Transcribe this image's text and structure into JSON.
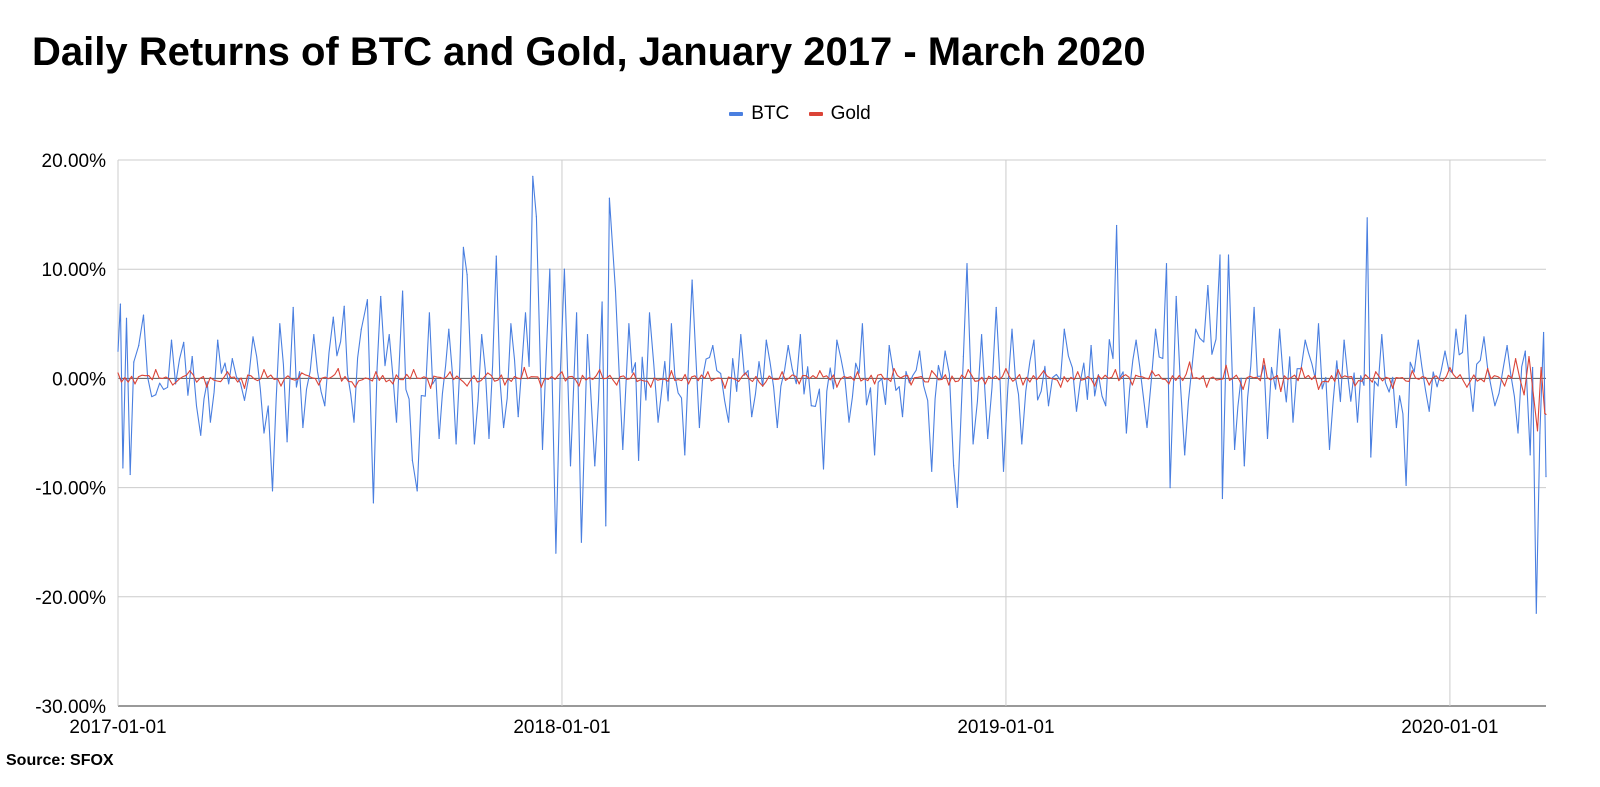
{
  "chart_data": {
    "type": "line",
    "title": "Daily Returns of BTC and Gold, January 2017 - March 2020",
    "xlabel": "",
    "ylabel": "",
    "x_range": [
      "2017-01-01",
      "2020-03-20"
    ],
    "x_ticks": [
      "2017-01-01",
      "2018-01-01",
      "2019-01-01",
      "2020-01-01"
    ],
    "y_ticks": [
      "20.00%",
      "10.00%",
      "0.00%",
      "-10.00%",
      "-20.00%",
      "-30.00%"
    ],
    "y_tick_values": [
      20,
      10,
      0,
      -10,
      -20,
      -30
    ],
    "ylim": [
      -30,
      20
    ],
    "y_unit": "%",
    "grid": true,
    "legend_position": "top-center",
    "series": [
      {
        "name": "BTC",
        "color": "#4a7fe0",
        "points": [
          [
            "2017-01-01",
            2.5
          ],
          [
            "2017-01-03",
            6.8
          ],
          [
            "2017-01-05",
            -8.2
          ],
          [
            "2017-01-08",
            5.5
          ],
          [
            "2017-01-11",
            -8.8
          ],
          [
            "2017-01-14",
            1.5
          ],
          [
            "2017-01-18",
            3.0
          ],
          [
            "2017-01-22",
            5.8
          ],
          [
            "2017-02-01",
            -1.5
          ],
          [
            "2017-02-14",
            3.5
          ],
          [
            "2017-02-24",
            3.3
          ],
          [
            "2017-03-03",
            2.0
          ],
          [
            "2017-03-10",
            -5.2
          ],
          [
            "2017-03-18",
            -4.0
          ],
          [
            "2017-03-24",
            3.5
          ],
          [
            "2017-04-05",
            1.8
          ],
          [
            "2017-04-15",
            -2.0
          ],
          [
            "2017-04-22",
            3.8
          ],
          [
            "2017-05-01",
            -5.0
          ],
          [
            "2017-05-08",
            -10.3
          ],
          [
            "2017-05-14",
            5.0
          ],
          [
            "2017-05-20",
            -5.8
          ],
          [
            "2017-05-25",
            6.5
          ],
          [
            "2017-06-02",
            -4.5
          ],
          [
            "2017-06-11",
            4.0
          ],
          [
            "2017-06-20",
            -2.5
          ],
          [
            "2017-06-27",
            5.6
          ],
          [
            "2017-07-06",
            6.6
          ],
          [
            "2017-07-14",
            -4.0
          ],
          [
            "2017-07-20",
            4.5
          ],
          [
            "2017-07-25",
            7.2
          ],
          [
            "2017-07-30",
            -11.4
          ],
          [
            "2017-08-05",
            7.5
          ],
          [
            "2017-08-12",
            4.0
          ],
          [
            "2017-08-18",
            -4.0
          ],
          [
            "2017-08-23",
            8.0
          ],
          [
            "2017-08-31",
            -7.5
          ],
          [
            "2017-09-04",
            -10.3
          ],
          [
            "2017-09-14",
            6.0
          ],
          [
            "2017-09-22",
            -5.5
          ],
          [
            "2017-09-30",
            4.5
          ],
          [
            "2017-10-06",
            -6.0
          ],
          [
            "2017-10-12",
            12.0
          ],
          [
            "2017-10-15",
            9.5
          ],
          [
            "2017-10-21",
            -6.0
          ],
          [
            "2017-10-27",
            4.0
          ],
          [
            "2017-11-02",
            -5.5
          ],
          [
            "2017-11-08",
            11.2
          ],
          [
            "2017-11-14",
            -4.5
          ],
          [
            "2017-11-20",
            5.0
          ],
          [
            "2017-11-26",
            -3.5
          ],
          [
            "2017-12-02",
            6.0
          ],
          [
            "2017-12-08",
            18.5
          ],
          [
            "2017-12-11",
            14.8
          ],
          [
            "2017-12-16",
            -6.5
          ],
          [
            "2017-12-22",
            10.0
          ],
          [
            "2017-12-27",
            -16.0
          ],
          [
            "2018-01-03",
            10.0
          ],
          [
            "2018-01-08",
            -8.0
          ],
          [
            "2018-01-13",
            6.0
          ],
          [
            "2018-01-17",
            -15.0
          ],
          [
            "2018-01-22",
            4.0
          ],
          [
            "2018-01-28",
            -8.0
          ],
          [
            "2018-02-03",
            7.0
          ],
          [
            "2018-02-06",
            -13.5
          ],
          [
            "2018-02-09",
            16.5
          ],
          [
            "2018-02-14",
            8.0
          ],
          [
            "2018-02-20",
            -6.5
          ],
          [
            "2018-02-25",
            5.0
          ],
          [
            "2018-03-05",
            -7.5
          ],
          [
            "2018-03-14",
            6.0
          ],
          [
            "2018-03-21",
            -4.0
          ],
          [
            "2018-04-01",
            5.0
          ],
          [
            "2018-04-12",
            -7.0
          ],
          [
            "2018-04-18",
            9.0
          ],
          [
            "2018-04-24",
            -4.5
          ],
          [
            "2018-05-05",
            3.0
          ],
          [
            "2018-05-18",
            -4.0
          ],
          [
            "2018-05-28",
            4.0
          ],
          [
            "2018-06-06",
            -3.5
          ],
          [
            "2018-06-18",
            3.5
          ],
          [
            "2018-06-27",
            -4.5
          ],
          [
            "2018-07-06",
            3.0
          ],
          [
            "2018-07-16",
            4.0
          ],
          [
            "2018-07-25",
            -2.5
          ],
          [
            "2018-08-04",
            -8.3
          ],
          [
            "2018-08-15",
            3.5
          ],
          [
            "2018-08-25",
            -4.0
          ],
          [
            "2018-09-05",
            5.0
          ],
          [
            "2018-09-15",
            -7.0
          ],
          [
            "2018-09-27",
            3.0
          ],
          [
            "2018-10-08",
            -3.5
          ],
          [
            "2018-10-22",
            2.5
          ],
          [
            "2018-11-01",
            -8.5
          ],
          [
            "2018-11-12",
            2.5
          ],
          [
            "2018-11-19",
            -8.0
          ],
          [
            "2018-11-22",
            -11.8
          ],
          [
            "2018-11-27",
            2.0
          ],
          [
            "2018-11-30",
            10.5
          ],
          [
            "2018-12-05",
            -6.0
          ],
          [
            "2018-12-12",
            4.0
          ],
          [
            "2018-12-17",
            -5.5
          ],
          [
            "2018-12-24",
            6.5
          ],
          [
            "2018-12-30",
            -8.5
          ],
          [
            "2019-01-06",
            4.5
          ],
          [
            "2019-01-14",
            -6.0
          ],
          [
            "2019-01-24",
            3.5
          ],
          [
            "2019-02-05",
            -2.5
          ],
          [
            "2019-02-18",
            4.5
          ],
          [
            "2019-02-28",
            -3.0
          ],
          [
            "2019-03-12",
            3.0
          ],
          [
            "2019-03-24",
            -2.5
          ],
          [
            "2019-04-02",
            14.0
          ],
          [
            "2019-04-10",
            -5.0
          ],
          [
            "2019-04-18",
            3.5
          ],
          [
            "2019-04-27",
            -4.5
          ],
          [
            "2019-05-04",
            4.5
          ],
          [
            "2019-05-13",
            10.5
          ],
          [
            "2019-05-16",
            -10.0
          ],
          [
            "2019-05-21",
            7.5
          ],
          [
            "2019-05-28",
            -7.0
          ],
          [
            "2019-06-06",
            4.5
          ],
          [
            "2019-06-16",
            8.5
          ],
          [
            "2019-06-26",
            11.3
          ],
          [
            "2019-06-28",
            -11.0
          ],
          [
            "2019-07-03",
            11.3
          ],
          [
            "2019-07-08",
            -6.5
          ],
          [
            "2019-07-16",
            -8.0
          ],
          [
            "2019-07-24",
            6.5
          ],
          [
            "2019-08-04",
            -5.5
          ],
          [
            "2019-08-14",
            4.5
          ],
          [
            "2019-08-25",
            -4.0
          ],
          [
            "2019-09-04",
            3.5
          ],
          [
            "2019-09-15",
            5.0
          ],
          [
            "2019-09-24",
            -6.5
          ],
          [
            "2019-10-06",
            3.5
          ],
          [
            "2019-10-17",
            -4.0
          ],
          [
            "2019-10-25",
            14.7
          ],
          [
            "2019-10-28",
            -7.2
          ],
          [
            "2019-11-06",
            4.0
          ],
          [
            "2019-11-18",
            -4.5
          ],
          [
            "2019-11-26",
            -9.8
          ],
          [
            "2019-12-06",
            3.5
          ],
          [
            "2019-12-15",
            -3.0
          ],
          [
            "2019-12-28",
            2.5
          ],
          [
            "2020-01-06",
            4.5
          ],
          [
            "2020-01-14",
            5.8
          ],
          [
            "2020-01-20",
            -3.0
          ],
          [
            "2020-01-29",
            3.8
          ],
          [
            "2020-02-07",
            -2.5
          ],
          [
            "2020-02-17",
            3.0
          ],
          [
            "2020-02-26",
            -5.0
          ],
          [
            "2020-03-03",
            2.5
          ],
          [
            "2020-03-07",
            -7.0
          ],
          [
            "2020-03-09",
            1.0
          ],
          [
            "2020-03-12",
            -21.5
          ],
          [
            "2020-03-15",
            -5.0
          ],
          [
            "2020-03-18",
            4.2
          ],
          [
            "2020-03-20",
            -9.0
          ]
        ]
      },
      {
        "name": "Gold",
        "color": "#db4437",
        "points": [
          [
            "2017-01-01",
            0.5
          ],
          [
            "2017-01-15",
            -0.5
          ],
          [
            "2017-02-01",
            0.8
          ],
          [
            "2017-02-15",
            -0.6
          ],
          [
            "2017-03-01",
            0.7
          ],
          [
            "2017-03-15",
            -0.8
          ],
          [
            "2017-04-01",
            0.6
          ],
          [
            "2017-04-15",
            -0.9
          ],
          [
            "2017-05-01",
            0.8
          ],
          [
            "2017-05-15",
            -0.7
          ],
          [
            "2017-06-01",
            0.5
          ],
          [
            "2017-06-15",
            -0.6
          ],
          [
            "2017-07-01",
            0.9
          ],
          [
            "2017-07-15",
            -0.8
          ],
          [
            "2017-08-01",
            0.6
          ],
          [
            "2017-08-15",
            -0.5
          ],
          [
            "2017-09-01",
            0.8
          ],
          [
            "2017-09-15",
            -0.9
          ],
          [
            "2017-10-01",
            0.6
          ],
          [
            "2017-10-15",
            -0.7
          ],
          [
            "2017-11-01",
            0.5
          ],
          [
            "2017-11-15",
            -0.6
          ],
          [
            "2017-12-01",
            1.0
          ],
          [
            "2017-12-15",
            -0.8
          ],
          [
            "2018-01-01",
            0.6
          ],
          [
            "2018-01-15",
            -0.7
          ],
          [
            "2018-02-01",
            0.8
          ],
          [
            "2018-02-15",
            -0.6
          ],
          [
            "2018-03-01",
            0.5
          ],
          [
            "2018-03-15",
            -0.8
          ],
          [
            "2018-04-01",
            0.7
          ],
          [
            "2018-04-15",
            -0.5
          ],
          [
            "2018-05-01",
            0.6
          ],
          [
            "2018-05-15",
            -0.9
          ],
          [
            "2018-06-01",
            0.5
          ],
          [
            "2018-06-15",
            -0.7
          ],
          [
            "2018-07-01",
            0.6
          ],
          [
            "2018-07-15",
            -0.5
          ],
          [
            "2018-08-01",
            0.7
          ],
          [
            "2018-08-15",
            -0.8
          ],
          [
            "2018-09-01",
            0.6
          ],
          [
            "2018-09-15",
            -0.5
          ],
          [
            "2018-10-01",
            0.9
          ],
          [
            "2018-10-15",
            -0.6
          ],
          [
            "2018-11-01",
            0.7
          ],
          [
            "2018-11-15",
            -0.6
          ],
          [
            "2018-12-01",
            0.8
          ],
          [
            "2018-12-15",
            -0.5
          ],
          [
            "2019-01-01",
            0.9
          ],
          [
            "2019-01-15",
            -0.6
          ],
          [
            "2019-02-01",
            0.7
          ],
          [
            "2019-02-15",
            -0.8
          ],
          [
            "2019-03-01",
            0.6
          ],
          [
            "2019-03-15",
            -0.7
          ],
          [
            "2019-04-01",
            0.8
          ],
          [
            "2019-04-15",
            -0.6
          ],
          [
            "2019-05-01",
            0.7
          ],
          [
            "2019-05-15",
            -0.5
          ],
          [
            "2019-06-01",
            1.5
          ],
          [
            "2019-06-15",
            -0.8
          ],
          [
            "2019-07-01",
            1.2
          ],
          [
            "2019-07-15",
            -1.0
          ],
          [
            "2019-08-01",
            1.8
          ],
          [
            "2019-08-15",
            -1.2
          ],
          [
            "2019-09-01",
            1.0
          ],
          [
            "2019-09-15",
            -1.0
          ],
          [
            "2019-10-01",
            0.8
          ],
          [
            "2019-10-15",
            -0.7
          ],
          [
            "2019-11-01",
            0.6
          ],
          [
            "2019-11-15",
            -0.9
          ],
          [
            "2019-12-01",
            0.7
          ],
          [
            "2019-12-15",
            -0.6
          ],
          [
            "2020-01-01",
            1.0
          ],
          [
            "2020-01-15",
            -0.8
          ],
          [
            "2020-02-01",
            0.9
          ],
          [
            "2020-02-15",
            -0.7
          ],
          [
            "2020-02-24",
            1.8
          ],
          [
            "2020-03-02",
            -1.5
          ],
          [
            "2020-03-06",
            2.0
          ],
          [
            "2020-03-10",
            -1.8
          ],
          [
            "2020-03-13",
            -4.8
          ],
          [
            "2020-03-16",
            1.0
          ],
          [
            "2020-03-19",
            -3.2
          ],
          [
            "2020-03-20",
            -3.3
          ]
        ]
      }
    ]
  },
  "footer": {
    "source": "Source: SFOX"
  }
}
